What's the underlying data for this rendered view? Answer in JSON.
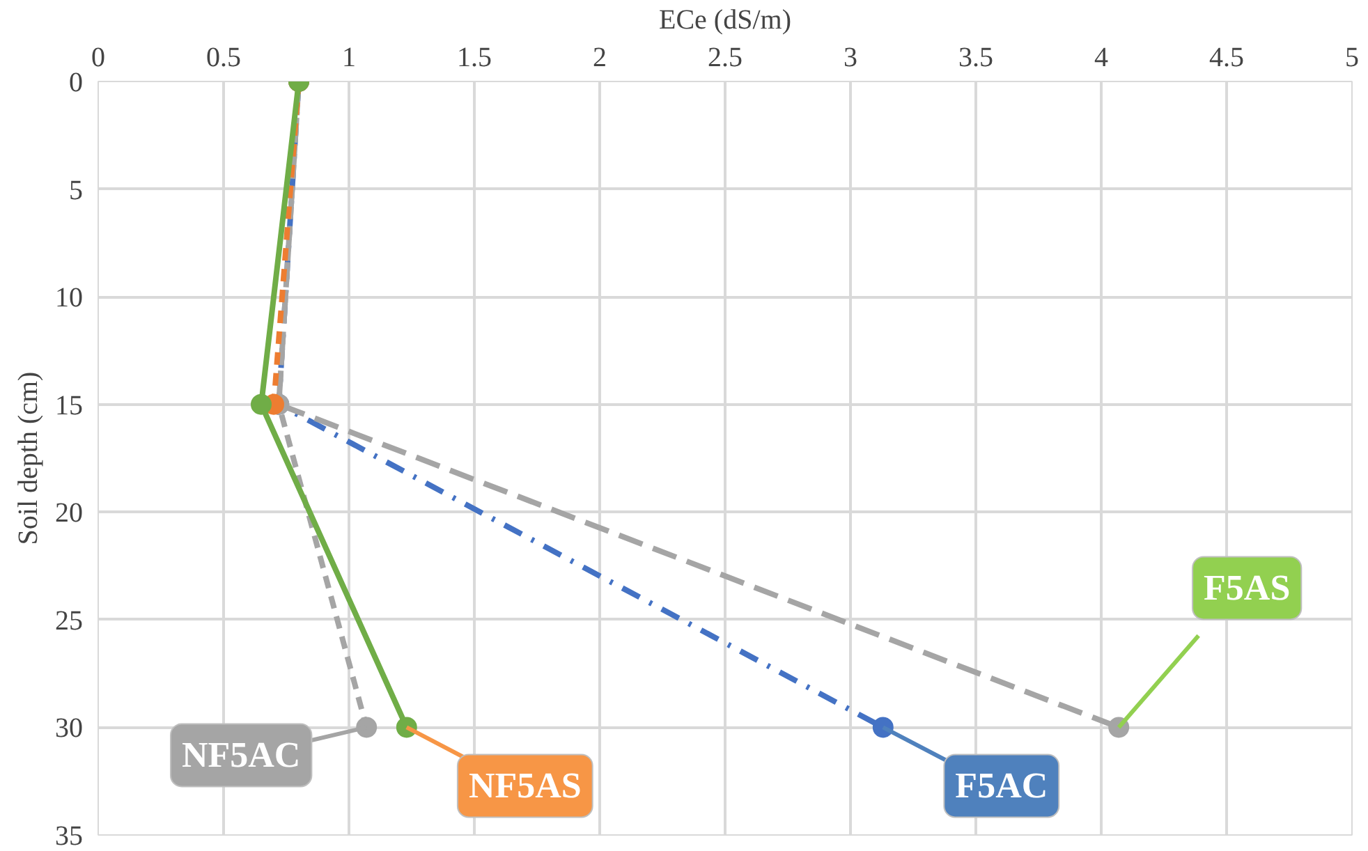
{
  "chart_data": {
    "type": "line",
    "xlabel": "ECe (dS/m)",
    "ylabel": "Soil depth (cm)",
    "series": [
      {
        "color": "#4472c4",
        "line_style": "dashdot",
        "x": [
          0.8,
          0.72,
          3.13
        ],
        "values": [
          0,
          15,
          30
        ]
      },
      {
        "color": "#a5a5a5",
        "line_style": "longdash",
        "x": [
          0.8,
          0.72,
          4.07
        ],
        "values": [
          0,
          15,
          30
        ]
      },
      {
        "color": "#a5a5a5",
        "line_style": "dashed",
        "x": [
          0.8,
          0.72,
          1.07
        ],
        "values": [
          0,
          15,
          30
        ]
      },
      {
        "color": "#ed7d31",
        "line_style": "dashed",
        "x": [
          0.8,
          0.7
        ],
        "values": [
          0,
          15
        ]
      },
      {
        "color": "#70ad47",
        "line_style": "solid",
        "x": [
          0.8,
          0.65,
          1.23
        ],
        "values": [
          0,
          15,
          30
        ]
      }
    ],
    "xlim": [
      0,
      5
    ],
    "xticks": [
      0,
      0.5,
      1,
      1.5,
      2,
      2.5,
      3,
      3.5,
      4,
      4.5,
      5
    ],
    "ylim": [
      35,
      0
    ],
    "yticks": [
      0,
      5,
      10,
      15,
      20,
      25,
      30,
      35
    ],
    "grid": true,
    "marker": "circle",
    "annotations": [
      {
        "text": "NF5AC",
        "x": 1.07,
        "y": 30
      },
      {
        "text": "NF5AS",
        "x": 1.23,
        "y": 30
      },
      {
        "text": "F5AC",
        "x": 3.13,
        "y": 30
      },
      {
        "text": "F5AS",
        "x": 4.07,
        "y": 30
      }
    ]
  }
}
